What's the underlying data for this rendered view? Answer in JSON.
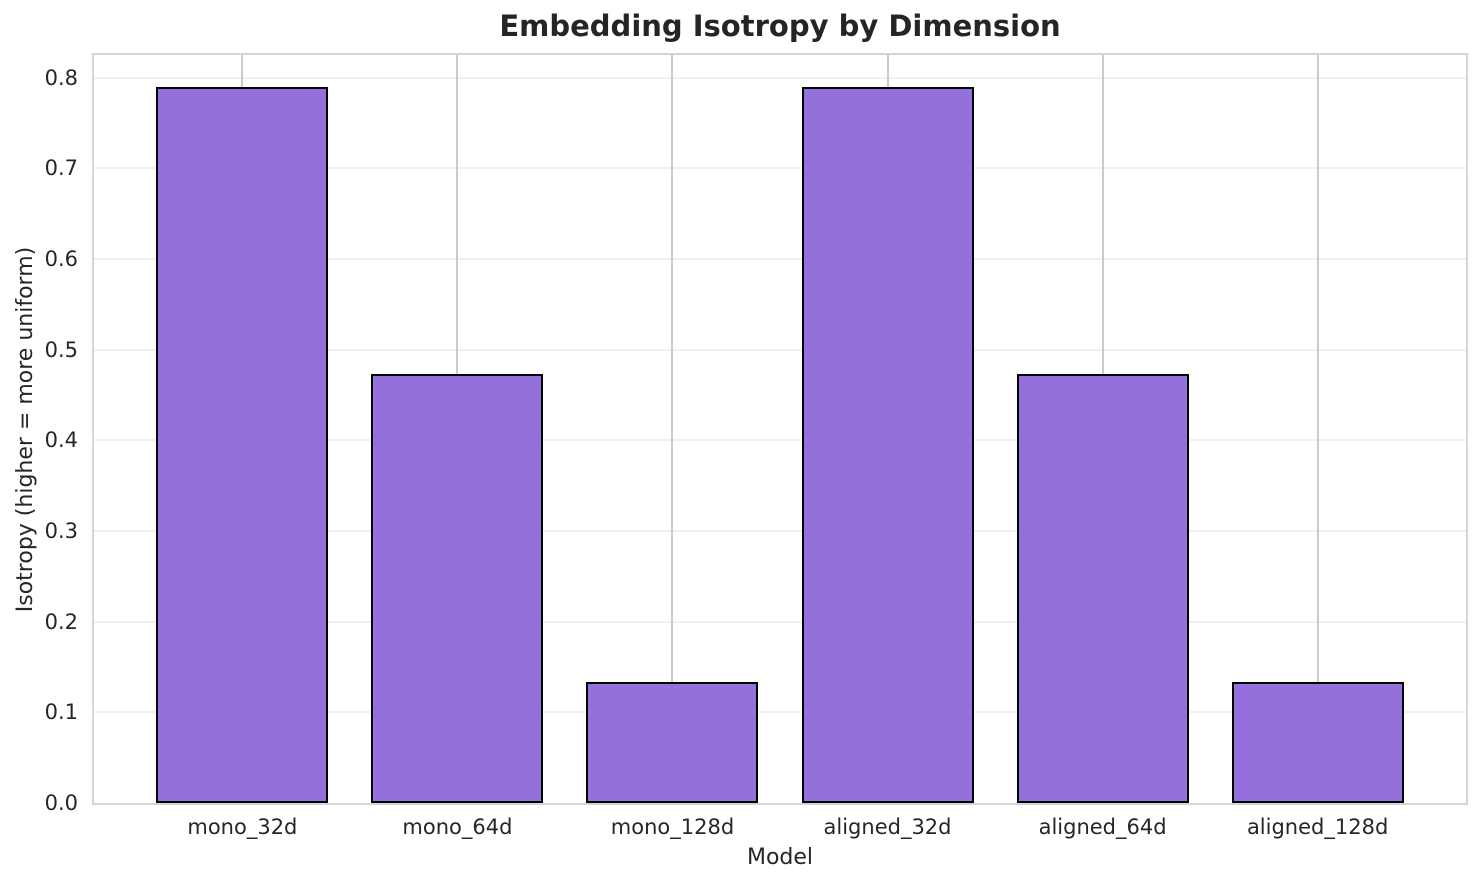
{
  "chart_data": {
    "type": "bar",
    "title": "Embedding Isotropy by Dimension",
    "xlabel": "Model",
    "ylabel": "Isotropy (higher = more uniform)",
    "categories": [
      "mono_32d",
      "mono_64d",
      "mono_128d",
      "aligned_32d",
      "aligned_64d",
      "aligned_128d"
    ],
    "values": [
      0.79,
      0.473,
      0.134,
      0.79,
      0.473,
      0.134
    ],
    "yticks": [
      0.0,
      0.1,
      0.2,
      0.3,
      0.4,
      0.5,
      0.6,
      0.7,
      0.8
    ],
    "ytick_labels": [
      "0.0",
      "0.1",
      "0.2",
      "0.3",
      "0.4",
      "0.5",
      "0.6",
      "0.7",
      "0.8"
    ],
    "ylim": [
      0,
      0.825
    ],
    "grid": true,
    "legend": false,
    "bar_color": "#9370DB",
    "bar_edge_color": "#000000",
    "h_gridline_color": "#f0f0f0",
    "v_gridline_color": "#cbcbcb",
    "spine_color": "#d5d5d5"
  }
}
